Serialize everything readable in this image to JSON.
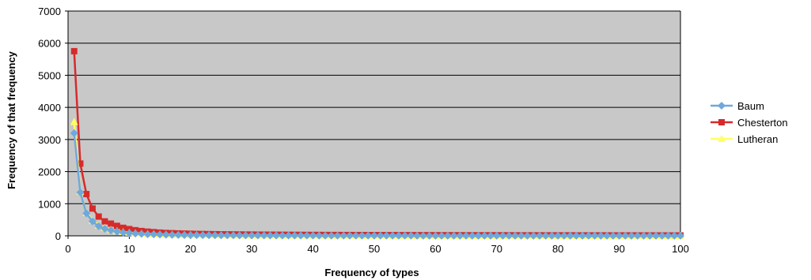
{
  "chart_data": {
    "type": "line",
    "xlabel": "Frequency of types",
    "ylabel": "Frequency of that frequency",
    "xlim": [
      0,
      100
    ],
    "ylim": [
      0,
      7000
    ],
    "x_ticks": [
      "0",
      "10",
      "20",
      "30",
      "40",
      "50",
      "60",
      "70",
      "80",
      "90",
      "100"
    ],
    "y_ticks": [
      "0",
      "1000",
      "2000",
      "3000",
      "4000",
      "5000",
      "6000",
      "7000"
    ],
    "grid": "horizontal",
    "plot_background": "#c8c8c8",
    "legend_position": "right",
    "x": [
      1,
      2,
      3,
      4,
      5,
      6,
      7,
      8,
      9,
      10,
      11,
      12,
      13,
      14,
      15,
      16,
      17,
      18,
      19,
      20,
      21,
      22,
      23,
      24,
      25,
      26,
      27,
      28,
      29,
      30,
      31,
      32,
      33,
      34,
      35,
      36,
      37,
      38,
      39,
      40,
      41,
      42,
      43,
      44,
      45,
      46,
      47,
      48,
      49,
      50,
      51,
      52,
      53,
      54,
      55,
      56,
      57,
      58,
      59,
      60,
      61,
      62,
      63,
      64,
      65,
      66,
      67,
      68,
      69,
      70,
      71,
      72,
      73,
      74,
      75,
      76,
      77,
      78,
      79,
      80,
      81,
      82,
      83,
      84,
      85,
      86,
      87,
      88,
      89,
      90,
      91,
      92,
      93,
      94,
      95,
      96,
      97,
      98,
      99,
      100
    ],
    "series": [
      {
        "name": "Baum",
        "color": "#6fa8dc",
        "marker": "diamond",
        "values": [
          3200,
          1350,
          700,
          450,
          300,
          220,
          170,
          130,
          100,
          85,
          70,
          60,
          50,
          45,
          40,
          35,
          30,
          28,
          25,
          23,
          21,
          20,
          18,
          17,
          16,
          15,
          14,
          13,
          12,
          12,
          11,
          11,
          10,
          10,
          9,
          9,
          9,
          8,
          8,
          8,
          7,
          7,
          7,
          7,
          6,
          6,
          6,
          6,
          6,
          5,
          5,
          5,
          5,
          5,
          5,
          5,
          4,
          4,
          4,
          4,
          4,
          4,
          4,
          4,
          4,
          3,
          3,
          3,
          3,
          3,
          3,
          3,
          3,
          3,
          3,
          3,
          3,
          3,
          3,
          3,
          3,
          3,
          3,
          3,
          3,
          3,
          3,
          3,
          3,
          3,
          3,
          3,
          3,
          3,
          3,
          3,
          3,
          3,
          3,
          3
        ]
      },
      {
        "name": "Chesterton",
        "color": "#d62b2b",
        "marker": "square",
        "values": [
          5750,
          2250,
          1300,
          850,
          600,
          450,
          380,
          310,
          250,
          210,
          175,
          150,
          130,
          115,
          100,
          90,
          82,
          75,
          70,
          65,
          60,
          57,
          54,
          51,
          49,
          47,
          45,
          43,
          41,
          40,
          38,
          37,
          36,
          35,
          34,
          33,
          32,
          31,
          30,
          29,
          29,
          28,
          27,
          27,
          26,
          26,
          25,
          25,
          24,
          24,
          23,
          23,
          23,
          22,
          22,
          21,
          21,
          21,
          20,
          20,
          20,
          19,
          19,
          19,
          18,
          18,
          18,
          18,
          17,
          17,
          17,
          17,
          16,
          16,
          16,
          16,
          16,
          15,
          15,
          15,
          15,
          15,
          14,
          14,
          14,
          14,
          14,
          14,
          13,
          13,
          13,
          13,
          13,
          13,
          13,
          12,
          12,
          12,
          12,
          12
        ]
      },
      {
        "name": "Lutheran",
        "color": "#ffff66",
        "marker": "triangle",
        "values": [
          3550,
          1380,
          720,
          480,
          330,
          250,
          190,
          150,
          120,
          100,
          85,
          72,
          62,
          55,
          48,
          43,
          39,
          35,
          32,
          30,
          28,
          26,
          24,
          22,
          21,
          20,
          19,
          18,
          17,
          16,
          15,
          15,
          14,
          14,
          13,
          13,
          12,
          12,
          11,
          11,
          11,
          10,
          10,
          10,
          9,
          9,
          9,
          9,
          8,
          8,
          8,
          8,
          8,
          7,
          7,
          7,
          7,
          7,
          7,
          6,
          6,
          6,
          6,
          6,
          6,
          6,
          5,
          5,
          5,
          5,
          5,
          5,
          5,
          5,
          5,
          5,
          4,
          4,
          4,
          4,
          4,
          4,
          4,
          4,
          4,
          4,
          4,
          4,
          4,
          4,
          4,
          4,
          4,
          4,
          4,
          4,
          4,
          4,
          4,
          4
        ]
      }
    ]
  }
}
